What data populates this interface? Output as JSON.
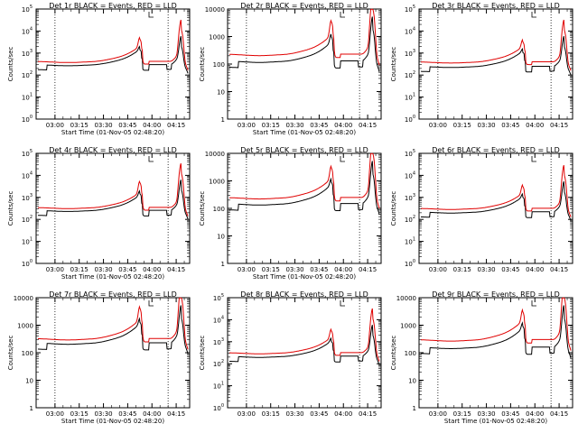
{
  "figure": {
    "colors": {
      "events": "#000000",
      "lld": "#e00000",
      "axis": "#000000",
      "background": "#ffffff"
    }
  },
  "chart_data": [
    {
      "type": "line",
      "title": "Det 1r BLACK = Events, RED = LLD",
      "ylabel": "Counts/sec",
      "xlabel": "Start Time (01-Nov-05 02:48:20)",
      "yscale": "log",
      "ylim": [
        1,
        100000
      ],
      "ytick_style": "exp",
      "xticks": [
        "03:00",
        "03:15",
        "03:30",
        "03:45",
        "04:00",
        "04:15"
      ],
      "series": [
        {
          "name": "Events",
          "color": "#000000"
        },
        {
          "name": "LLD",
          "color": "#e00000"
        }
      ],
      "profile": {
        "events_base": 300,
        "lld_base": 420,
        "peak1": 3500,
        "peak2": 11000
      }
    },
    {
      "type": "line",
      "title": "Det 2r BLACK = Events, RED = LLD",
      "ylabel": "Counts/sec",
      "xlabel": "Start Time (01-Nov-05 02:48:20)",
      "yscale": "log",
      "ylim": [
        1,
        10000
      ],
      "ytick_style": "num",
      "xticks": [
        "03:00",
        "03:15",
        "03:30",
        "03:45",
        "04:00",
        "04:15"
      ],
      "series": [
        {
          "name": "Events",
          "color": "#000000"
        },
        {
          "name": "LLD",
          "color": "#e00000"
        }
      ],
      "profile": {
        "events_base": 130,
        "lld_base": 230,
        "peak1": 3000,
        "peak2": 10000
      }
    },
    {
      "type": "line",
      "title": "Det 3r BLACK = Events, RED = LLD",
      "ylabel": "Counts/sec",
      "xlabel": "",
      "yscale": "log",
      "ylim": [
        1,
        100000
      ],
      "ytick_style": "exp",
      "xticks": [
        "03:00",
        "03:15",
        "03:30",
        "03:45",
        "04:00",
        "04:15"
      ],
      "series": [
        {
          "name": "Events",
          "color": "#000000"
        },
        {
          "name": "LLD",
          "color": "#e00000"
        }
      ],
      "profile": {
        "events_base": 250,
        "lld_base": 400,
        "peak1": 2500,
        "peak2": 11000
      }
    },
    {
      "type": "line",
      "title": "Det 4r BLACK = Events, RED = LLD",
      "ylabel": "Counts/sec",
      "xlabel": "Start Time (01-Nov-05 02:48:20)",
      "yscale": "log",
      "ylim": [
        1,
        100000
      ],
      "ytick_style": "exp",
      "xticks": [
        "03:00",
        "03:15",
        "03:30",
        "03:45",
        "04:00",
        "04:15"
      ],
      "series": [
        {
          "name": "Events",
          "color": "#000000"
        },
        {
          "name": "LLD",
          "color": "#e00000"
        }
      ],
      "profile": {
        "events_base": 260,
        "lld_base": 350,
        "peak1": 4000,
        "peak2": 12000
      }
    },
    {
      "type": "line",
      "title": "Det 5r BLACK = Events, RED = LLD",
      "ylabel": "Counts/sec",
      "xlabel": "Start Time (01-Nov-05 02:48:20)",
      "yscale": "log",
      "ylim": [
        1,
        10000
      ],
      "ytick_style": "num",
      "xticks": [
        "03:00",
        "03:15",
        "03:30",
        "03:45",
        "04:00",
        "04:15"
      ],
      "series": [
        {
          "name": "Events",
          "color": "#000000"
        },
        {
          "name": "LLD",
          "color": "#e00000"
        }
      ],
      "profile": {
        "events_base": 150,
        "lld_base": 250,
        "peak1": 2500,
        "peak2": 10000
      }
    },
    {
      "type": "line",
      "title": "Det 6r BLACK = Events, RED = LLD",
      "ylabel": "Counts/sec",
      "xlabel": "",
      "yscale": "log",
      "ylim": [
        1,
        100000
      ],
      "ytick_style": "exp",
      "xticks": [
        "03:00",
        "03:15",
        "03:30",
        "03:45",
        "04:00",
        "04:15"
      ],
      "series": [
        {
          "name": "Events",
          "color": "#000000"
        },
        {
          "name": "LLD",
          "color": "#e00000"
        }
      ],
      "profile": {
        "events_base": 220,
        "lld_base": 320,
        "peak1": 2500,
        "peak2": 10000
      }
    },
    {
      "type": "line",
      "title": "Det 7r BLACK = Events, RED = LLD",
      "ylabel": "Counts/sec",
      "xlabel": "Start Time (01-Nov-05 02:48:20)",
      "yscale": "log",
      "ylim": [
        1,
        10000
      ],
      "ytick_style": "num",
      "xticks": [
        "03:00",
        "03:15",
        "03:30",
        "03:45",
        "04:00",
        "04:15"
      ],
      "series": [
        {
          "name": "Events",
          "color": "#000000"
        },
        {
          "name": "LLD",
          "color": "#e00000"
        }
      ],
      "profile": {
        "events_base": 230,
        "lld_base": 330,
        "peak1": 3500,
        "peak2": 10000
      }
    },
    {
      "type": "line",
      "title": "Det 8r BLACK = Events, RED = LLD",
      "ylabel": "Counts/sec",
      "xlabel": "",
      "yscale": "log",
      "ylim": [
        1,
        100000
      ],
      "ytick_style": "exp",
      "xticks": [
        "03:00",
        "03:15",
        "03:30",
        "03:45",
        "04:00",
        "04:15"
      ],
      "series": [
        {
          "name": "Events",
          "color": "#000000"
        },
        {
          "name": "LLD",
          "color": "#e00000"
        }
      ],
      "profile": {
        "events_base": 220,
        "lld_base": 320,
        "peak1": 2500,
        "peak2": 11000
      }
    },
    {
      "type": "line",
      "title": "Det 9r BLACK = Events, RED = LLD",
      "ylabel": "Counts/sec",
      "xlabel": "Start Time (01-Nov-05 02:48:20)",
      "yscale": "log",
      "ylim": [
        1,
        10000
      ],
      "ytick_style": "num",
      "xticks": [
        "03:00",
        "03:15",
        "03:30",
        "03:45",
        "04:00",
        "04:15"
      ],
      "series": [
        {
          "name": "Events",
          "color": "#000000"
        },
        {
          "name": "LLD",
          "color": "#e00000"
        }
      ],
      "profile": {
        "events_base": 160,
        "lld_base": 300,
        "peak1": 2500,
        "peak2": 10000
      }
    }
  ]
}
